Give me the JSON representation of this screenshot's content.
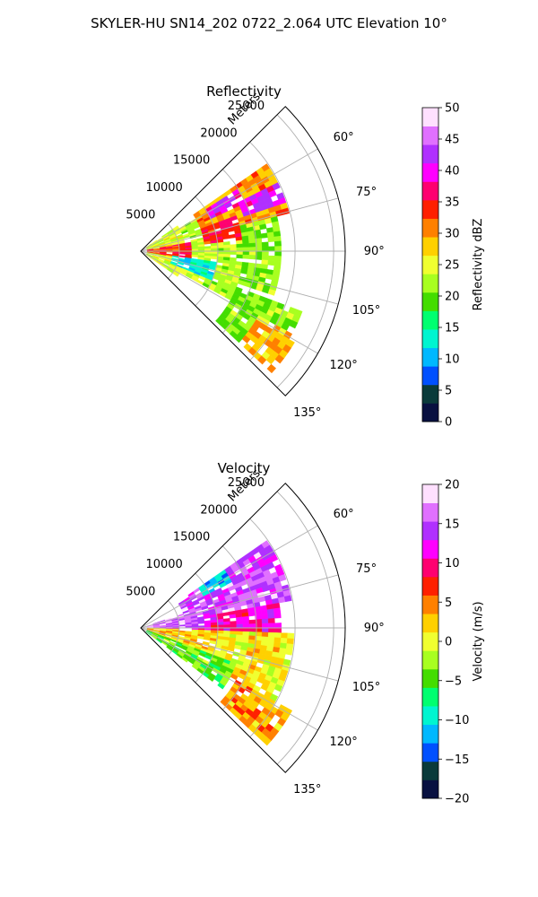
{
  "figure": {
    "suptitle": "SKYLER-HU  SN14_202  0722_2.064 UTC Elevation 10°"
  },
  "chart_data": [
    {
      "type": "heatmap",
      "projection": "polar-sector",
      "title": "Reflectivity",
      "radial_label": "Meters",
      "radial_ticks": [
        "5000",
        "10000",
        "15000",
        "20000",
        "25000"
      ],
      "radial_tick_values": [
        5000,
        10000,
        15000,
        20000,
        25000
      ],
      "rlim": [
        0,
        26500
      ],
      "angle_ticks": [
        "60°",
        "75°",
        "90°",
        "105°",
        "120°",
        "135°"
      ],
      "angle_tick_values": [
        60,
        75,
        90,
        105,
        120,
        135
      ],
      "theta_range": [
        45,
        135
      ],
      "grid": true,
      "colorbar": {
        "label": "Reflectivity dBZ",
        "ticks": [
          "0",
          "5",
          "10",
          "15",
          "20",
          "25",
          "30",
          "35",
          "40",
          "45",
          "50"
        ],
        "range": [
          0,
          50
        ],
        "colors": [
          "#081040",
          "#0a3a3a",
          "#0050ff",
          "#00b8ff",
          "#00f5d0",
          "#00ff70",
          "#44dd00",
          "#a8ff20",
          "#f0ff30",
          "#ffd000",
          "#ff8000",
          "#ff2000",
          "#ff0070",
          "#ff00ff",
          "#b030ff",
          "#e070ff",
          "#ffe0ff"
        ]
      },
      "fields": [
        {
          "rmin": 600,
          "rmax": 6000,
          "tmin": 55,
          "tmax": 125,
          "value": 24
        },
        {
          "rmin": 6000,
          "rmax": 13000,
          "tmin": 60,
          "tmax": 118,
          "value": 23
        },
        {
          "rmin": 13000,
          "rmax": 18500,
          "tmin": 67,
          "tmax": 108,
          "value": 21
        },
        {
          "rmin": 13000,
          "rmax": 22000,
          "tmin": 110,
          "tmax": 133,
          "value": 21
        },
        {
          "rmin": 8000,
          "rmax": 20000,
          "tmin": 56,
          "tmax": 76,
          "value": 30
        },
        {
          "rmin": 14000,
          "rmax": 20000,
          "tmin": 64,
          "tmax": 72,
          "value": 41
        },
        {
          "rmin": 10000,
          "rmax": 15000,
          "tmin": 58,
          "tmax": 65,
          "value": 40
        },
        {
          "rmin": 8500,
          "rmax": 13500,
          "tmin": 70,
          "tmax": 84,
          "value": 35
        },
        {
          "rmin": 1000,
          "rmax": 7000,
          "tmin": 80,
          "tmax": 100,
          "value": 34
        },
        {
          "rmin": 4000,
          "rmax": 10000,
          "tmin": 98,
          "tmax": 112,
          "value": 13
        },
        {
          "rmin": 17000,
          "rmax": 23000,
          "tmin": 118,
          "tmax": 132,
          "value": 29
        }
      ]
    },
    {
      "type": "heatmap",
      "projection": "polar-sector",
      "title": "Velocity",
      "radial_label": "Meters",
      "radial_ticks": [
        "5000",
        "10000",
        "15000",
        "20000",
        "25000"
      ],
      "radial_tick_values": [
        5000,
        10000,
        15000,
        20000,
        25000
      ],
      "rlim": [
        0,
        26500
      ],
      "angle_ticks": [
        "60°",
        "75°",
        "90°",
        "105°",
        "120°",
        "135°"
      ],
      "angle_tick_values": [
        60,
        75,
        90,
        105,
        120,
        135
      ],
      "theta_range": [
        45,
        135
      ],
      "grid": true,
      "colorbar": {
        "label": "Velocity (m/s)",
        "ticks": [
          "−20",
          "−15",
          "−10",
          "−5",
          "0",
          "5",
          "10",
          "15",
          "20"
        ],
        "range": [
          -20,
          20
        ],
        "colors": [
          "#081040",
          "#0a3a3a",
          "#0050ff",
          "#00b8ff",
          "#00f5d0",
          "#00ff70",
          "#44dd00",
          "#a8ff20",
          "#f0ff30",
          "#ffd000",
          "#ff8000",
          "#ff2000",
          "#ff0070",
          "#ff00ff",
          "#b030ff",
          "#e070ff",
          "#ffe0ff"
        ]
      },
      "fields": [
        {
          "rmin": 600,
          "rmax": 9000,
          "tmin": 90,
          "tmax": 125,
          "value": 2
        },
        {
          "rmin": 9000,
          "rmax": 20000,
          "tmin": 92,
          "tmax": 118,
          "value": 1
        },
        {
          "rmin": 14000,
          "rmax": 22000,
          "tmin": 118,
          "tmax": 133,
          "value": 4
        },
        {
          "rmin": 600,
          "rmax": 13000,
          "tmin": 110,
          "tmax": 127,
          "value": -4
        },
        {
          "rmin": 600,
          "rmax": 18000,
          "tmin": 78,
          "tmax": 92,
          "value": 11
        },
        {
          "rmin": 6000,
          "rmax": 20000,
          "tmin": 56,
          "tmax": 80,
          "value": 15
        },
        {
          "rmin": 9000,
          "rmax": 13000,
          "tmin": 55,
          "tmax": 63,
          "value": -11
        },
        {
          "rmin": 600,
          "rmax": 8000,
          "tmin": 72,
          "tmax": 89,
          "value": 16
        }
      ]
    }
  ]
}
